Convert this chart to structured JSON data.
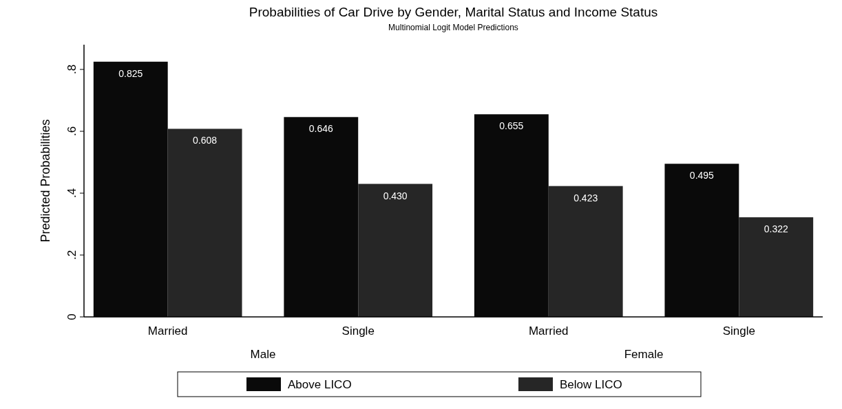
{
  "chart_data": {
    "type": "bar",
    "title": "Probabilities of Car Drive by Gender, Marital Status and Income Status",
    "subtitle": "Multinomial Logit Model Predictions",
    "ylabel": "Predicted Probabilities",
    "categories": [
      "Married",
      "Single",
      "Married",
      "Single"
    ],
    "series": [
      {
        "name": "Above LICO",
        "color": "#0a0a0a",
        "values": [
          0.825,
          0.646,
          0.655,
          0.495
        ],
        "value_labels": [
          "0.825",
          "0.646",
          "0.655",
          "0.495"
        ]
      },
      {
        "name": "Below LICO",
        "color": "#262626",
        "values": [
          0.608,
          0.43,
          0.423,
          0.322
        ],
        "value_labels": [
          "0.608",
          "0.430",
          "0.423",
          "0.322"
        ]
      }
    ],
    "annotations": [
      "Male",
      "Female"
    ],
    "ylim": [
      0,
      0.88
    ],
    "yticks": [
      0,
      {
        "value": 0.2,
        "label": ".2"
      },
      {
        "value": 0.4,
        "label": ".4"
      },
      {
        "value": 0.6,
        "label": ".6"
      },
      {
        "value": 0.8,
        "label": ".8"
      }
    ],
    "legend": "bottom",
    "grid": false
  }
}
